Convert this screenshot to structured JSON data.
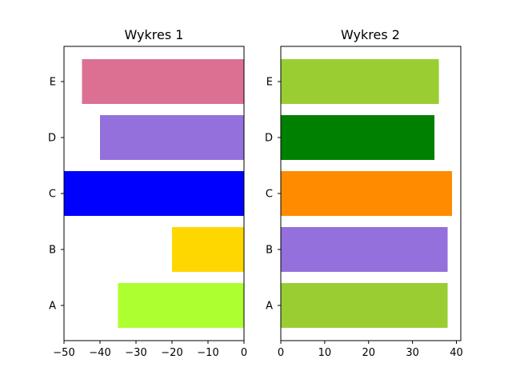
{
  "chart_data": [
    {
      "type": "bar",
      "orientation": "horizontal",
      "title": "Wykres 1",
      "categories": [
        "A",
        "B",
        "C",
        "D",
        "E"
      ],
      "values": [
        -35,
        -20,
        -50,
        -40,
        -45
      ],
      "colors": [
        "#adff2f",
        "#ffd700",
        "#0000ff",
        "#9370db",
        "#db7093"
      ],
      "xlim": [
        -50,
        0
      ],
      "xticks": [
        -50,
        -40,
        -30,
        -20,
        -10,
        0
      ],
      "xtick_labels": [
        "−50",
        "−40",
        "−30",
        "−20",
        "−10",
        "0"
      ],
      "grid": false
    },
    {
      "type": "bar",
      "orientation": "horizontal",
      "title": "Wykres 2",
      "categories": [
        "A",
        "B",
        "C",
        "D",
        "E"
      ],
      "values": [
        38,
        38,
        39,
        35,
        36
      ],
      "colors": [
        "#9acd32",
        "#9370db",
        "#ff8c00",
        "#008000",
        "#9acd32"
      ],
      "xlim": [
        0,
        41
      ],
      "xticks": [
        0,
        10,
        20,
        30,
        40
      ],
      "xtick_labels": [
        "0",
        "10",
        "20",
        "30",
        "40"
      ],
      "grid": false
    }
  ]
}
